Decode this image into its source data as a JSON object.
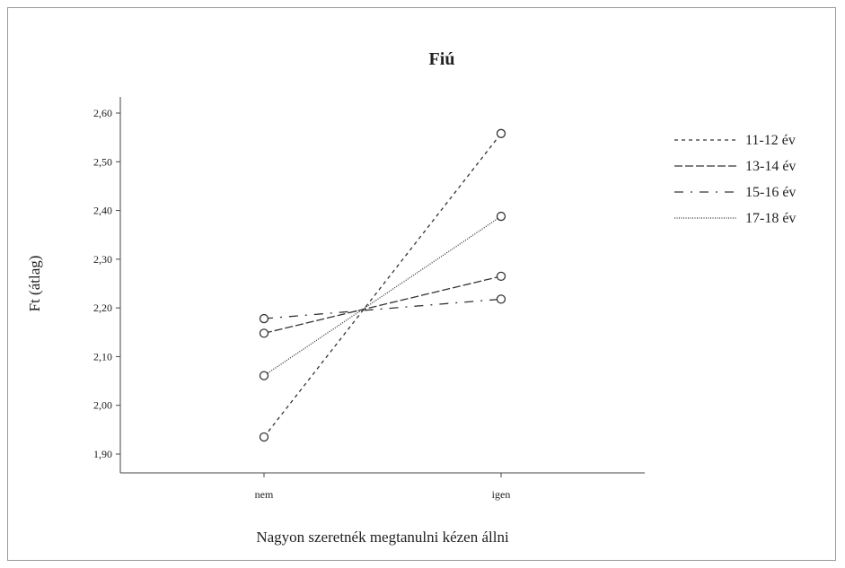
{
  "chart_data": {
    "type": "line",
    "title": "Fiú",
    "xlabel": "Nagyon szeretnék megtanulni kézen állni",
    "ylabel": "Ft (átlag)",
    "categories": [
      "nem",
      "igen"
    ],
    "ylim": [
      1.87,
      2.65
    ],
    "yticks": [
      {
        "value": 1.9,
        "label": "1,90"
      },
      {
        "value": 2.0,
        "label": "2,00"
      },
      {
        "value": 2.1,
        "label": "2,10"
      },
      {
        "value": 2.2,
        "label": "2,20"
      },
      {
        "value": 2.3,
        "label": "2,30"
      },
      {
        "value": 2.4,
        "label": "2,40"
      },
      {
        "value": 2.5,
        "label": "2,50"
      },
      {
        "value": 2.6,
        "label": "2,60"
      }
    ],
    "series": [
      {
        "name": "11-12 év",
        "values": [
          1.935,
          2.558
        ],
        "dash": "4,4"
      },
      {
        "name": "13-14 év",
        "values": [
          2.148,
          2.265
        ],
        "dash": "9,3"
      },
      {
        "name": "15-16 év",
        "values": [
          2.178,
          2.218
        ],
        "dash": "10,8,2,8"
      },
      {
        "name": "17-18 év",
        "values": [
          2.061,
          2.388
        ],
        "dash": "1,1.5"
      }
    ],
    "legend_position": "right",
    "grid": false,
    "marker": "open-circle",
    "line_color": "#333333",
    "text_color": "#222222"
  }
}
